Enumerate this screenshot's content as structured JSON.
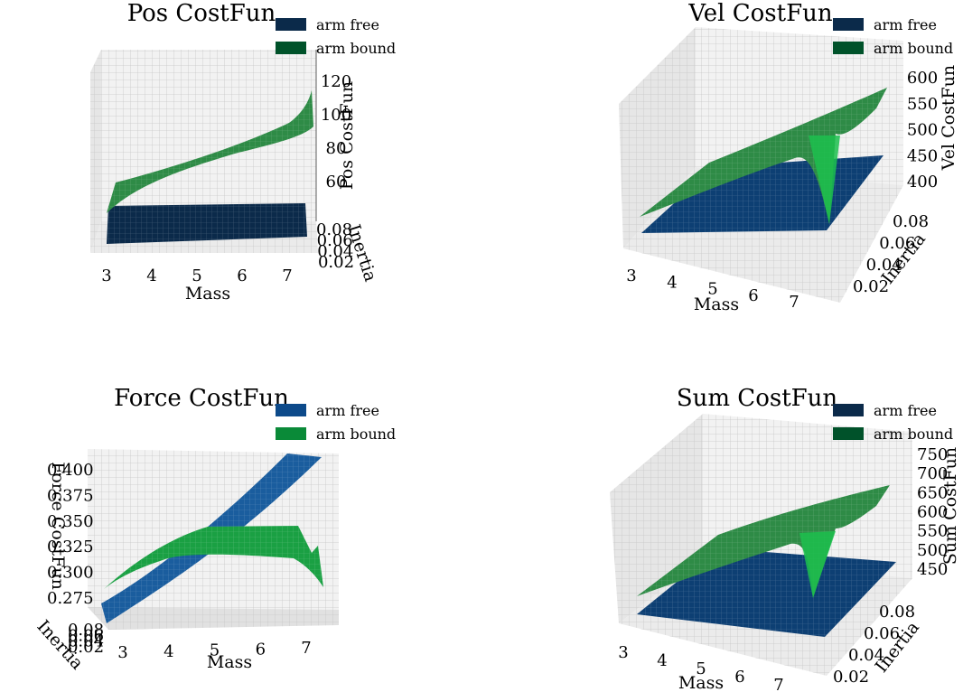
{
  "chart_data": [
    {
      "type": "surface",
      "title": "Pos CostFun",
      "xlabel": "Mass",
      "ylabel": "Inertia",
      "zlabel": "Pos CostFun",
      "x_ticks": [
        "3",
        "4",
        "5",
        "6",
        "7"
      ],
      "y_ticks": [
        "0.02",
        "0.04",
        "0.06",
        "0.08"
      ],
      "z_ticks": [
        "60",
        "80",
        "100",
        "120"
      ],
      "xlim": [
        2.7,
        7.7
      ],
      "ylim": [
        0.01,
        0.09
      ],
      "zlim": [
        40,
        125
      ],
      "legend": "top-right",
      "series": [
        {
          "name": "arm free",
          "color": "#0b2a4a",
          "mass": [
            3,
            4,
            5,
            6,
            7,
            7.5
          ],
          "values": [
            41,
            41,
            41,
            41,
            41,
            41
          ]
        },
        {
          "name": "arm bound",
          "color": "#1f7a3a",
          "mass": [
            3,
            4,
            5,
            6,
            7,
            7.5
          ],
          "values": [
            58,
            66,
            75,
            86,
            100,
            120
          ]
        }
      ]
    },
    {
      "type": "surface",
      "title": "Vel CostFun",
      "xlabel": "Mass",
      "ylabel": "Inertia",
      "zlabel": "Vel CostFun",
      "x_ticks": [
        "3",
        "4",
        "5",
        "6",
        "7"
      ],
      "y_ticks": [
        "0.02",
        "0.04",
        "0.06",
        "0.08"
      ],
      "z_ticks": [
        "400",
        "450",
        "500",
        "550",
        "600"
      ],
      "xlim": [
        2.7,
        7.7
      ],
      "ylim": [
        0.01,
        0.09
      ],
      "zlim": [
        380,
        610
      ],
      "legend": "top-right",
      "series": [
        {
          "name": "arm free",
          "color": "#0b2a4a",
          "mass": [
            3,
            5,
            7.5
          ],
          "values": [
            385,
            385,
            385
          ]
        },
        {
          "name": "arm bound",
          "color": "#1f7a3a",
          "mass": [
            3,
            4,
            5,
            6,
            7,
            7.5
          ],
          "values": [
            430,
            460,
            490,
            520,
            555,
            580
          ]
        }
      ]
    },
    {
      "type": "surface",
      "title": "Force CostFun",
      "xlabel": "Mass",
      "ylabel": "Inertia",
      "zlabel": "Force CostFun",
      "x_ticks": [
        "3",
        "4",
        "5",
        "6",
        "7"
      ],
      "y_ticks": [
        "0.02",
        "0.04",
        "0.06",
        "0.08"
      ],
      "z_ticks": [
        "0.275",
        "0.300",
        "0.325",
        "0.350",
        "0.375",
        "0.400"
      ],
      "xlim": [
        2.7,
        7.7
      ],
      "ylim": [
        0.01,
        0.09
      ],
      "zlim": [
        0.265,
        0.41
      ],
      "legend": "top-right",
      "series": [
        {
          "name": "arm free",
          "color": "#0d4a8a",
          "mass": [
            3,
            4,
            5,
            6,
            7,
            7.5
          ],
          "values": [
            0.268,
            0.295,
            0.33,
            0.365,
            0.395,
            0.41
          ]
        },
        {
          "name": "arm bound",
          "color": "#1aa043",
          "mass": [
            3,
            4,
            5,
            6,
            7,
            7.5
          ],
          "values": [
            0.3,
            0.335,
            0.345,
            0.345,
            0.34,
            0.3
          ]
        }
      ]
    },
    {
      "type": "surface",
      "title": "Sum CostFun",
      "xlabel": "Mass",
      "ylabel": "Inertia",
      "zlabel": "Sum CostFun",
      "x_ticks": [
        "3",
        "4",
        "5",
        "6",
        "7"
      ],
      "y_ticks": [
        "0.02",
        "0.04",
        "0.06",
        "0.08"
      ],
      "z_ticks": [
        "450",
        "500",
        "550",
        "600",
        "650",
        "700",
        "750"
      ],
      "xlim": [
        2.7,
        7.7
      ],
      "ylim": [
        0.01,
        0.09
      ],
      "zlim": [
        420,
        760
      ],
      "legend": "top-right",
      "series": [
        {
          "name": "arm free",
          "color": "#0b2a4a",
          "mass": [
            3,
            5,
            7.5
          ],
          "values": [
            430,
            430,
            430
          ]
        },
        {
          "name": "arm bound",
          "color": "#1f7a3a",
          "mass": [
            3,
            4,
            5,
            6,
            7,
            7.5
          ],
          "values": [
            490,
            530,
            575,
            620,
            660,
            700
          ]
        }
      ]
    }
  ],
  "legend_colors": {
    "panel0": [
      "#0b2a4a",
      "#00522a"
    ],
    "panel1": [
      "#0b2a4a",
      "#00522a"
    ],
    "panel2": [
      "#0d4a8a",
      "#0a8a38"
    ],
    "panel3": [
      "#0b2a4a",
      "#00522a"
    ]
  }
}
